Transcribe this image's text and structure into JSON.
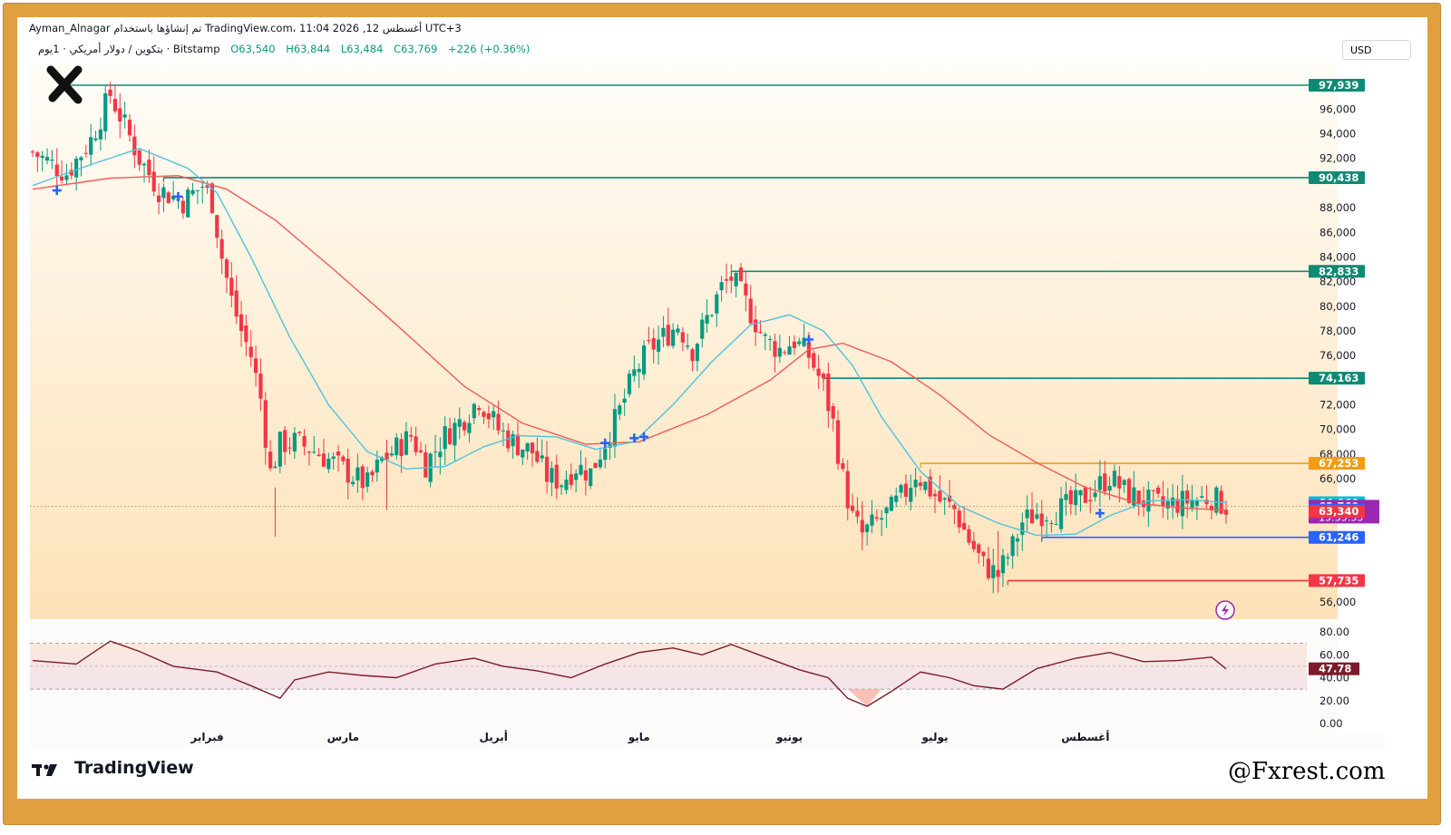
{
  "header": {
    "line1": "Ayman_Alnagar تم إنشاؤها باستخدام TradingView.com، 11:04 2026 ,12 أغسطس UTC+3",
    "symbol": "بتكوين / دولار أمريكي · 1يوم · Bitstamp",
    "open": "O63,540",
    "high": "H63,844",
    "low": "L63,484",
    "close": "C63,769",
    "change": "+226 (+0.36%)"
  },
  "currency": "USD",
  "brand": "TradingView",
  "handle": "@Fxrest.com",
  "colors": {
    "frame": "#e19f3f",
    "bull": "#089981",
    "bear": "#f23645",
    "ma_fast": "#4fc3dc",
    "ma_slow": "#f05a5a",
    "level": "#0e8a74",
    "rsi": "#7b1a2a"
  },
  "chart_data": {
    "type": "candlestick",
    "timeframe": "1D",
    "y_range": [
      55000,
      99000
    ],
    "y_ticks": [
      "56,000",
      "66,000",
      "68,000",
      "70,000",
      "72,000",
      "76,000",
      "78,000",
      "80,000",
      "82,000",
      "84,000",
      "86,000",
      "88,000",
      "92,000",
      "94,000",
      "96,000"
    ],
    "x_labels": [
      {
        "label": "فبراير",
        "date": "2026-02-01"
      },
      {
        "label": "مارس",
        "date": "2026-03-01"
      },
      {
        "label": "أبريل",
        "date": "2026-04-01"
      },
      {
        "label": "مايو",
        "date": "2026-05-01"
      },
      {
        "label": "يونيو",
        "date": "2026-06-01"
      },
      {
        "label": "يوليو",
        "date": "2026-07-01"
      },
      {
        "label": "أغسطس",
        "date": "2026-08-01"
      }
    ],
    "horizontal_levels": [
      {
        "value": 97939,
        "label": "97,939",
        "color": "#0e8a74"
      },
      {
        "value": 90438,
        "label": "90,438",
        "color": "#0e8a74"
      },
      {
        "value": 82833,
        "label": "82,833",
        "color": "#0e8a74"
      },
      {
        "value": 74163,
        "label": "74,163",
        "color": "#0e8a74"
      },
      {
        "value": 67253,
        "label": "67,253",
        "color": "#f39c12"
      },
      {
        "value": 61246,
        "label": "61,246",
        "color": "#2962ff"
      },
      {
        "value": 57735,
        "label": "57,735",
        "color": "#f23645"
      }
    ],
    "price_badges": [
      {
        "value": 64060,
        "label": "64,060",
        "color": "#00bcd4"
      },
      {
        "value": 63769,
        "label": "63,769",
        "sub": "15:55:55",
        "color": "#9c27b0"
      },
      {
        "value": 63466,
        "label": "63,466",
        "color": "#2962ff"
      },
      {
        "value": 63340,
        "label": "63,340",
        "color": "#f23645"
      }
    ],
    "close_path": [
      [
        "2025-12-27",
        92500
      ],
      [
        "2026-01-03",
        90800
      ],
      [
        "2026-01-08",
        93500
      ],
      [
        "2026-01-12",
        97200
      ],
      [
        "2026-01-14",
        95500
      ],
      [
        "2026-01-18",
        92000
      ],
      [
        "2026-01-22",
        89500
      ],
      [
        "2026-01-27",
        88500
      ],
      [
        "2026-01-31",
        89800
      ],
      [
        "2026-02-02",
        88500
      ],
      [
        "2026-02-04",
        84000
      ],
      [
        "2026-02-06",
        80500
      ],
      [
        "2026-02-08",
        78000
      ],
      [
        "2026-02-10",
        76000
      ],
      [
        "2026-02-12",
        72500
      ],
      [
        "2026-02-14",
        66500
      ],
      [
        "2026-02-16",
        68800
      ],
      [
        "2026-02-19",
        69000
      ],
      [
        "2026-02-23",
        68300
      ],
      [
        "2026-02-27",
        67300
      ],
      [
        "2026-03-02",
        66500
      ],
      [
        "2026-03-06",
        65500
      ],
      [
        "2026-03-09",
        67500
      ],
      [
        "2026-03-12",
        68500
      ],
      [
        "2026-03-15",
        69500
      ],
      [
        "2026-03-18",
        67200
      ],
      [
        "2026-03-22",
        69500
      ],
      [
        "2026-03-26",
        71000
      ],
      [
        "2026-03-29",
        72500
      ],
      [
        "2026-04-02",
        70000
      ],
      [
        "2026-04-05",
        69000
      ],
      [
        "2026-04-09",
        68200
      ],
      [
        "2026-04-12",
        66200
      ],
      [
        "2026-04-15",
        65800
      ],
      [
        "2026-04-18",
        67000
      ],
      [
        "2026-04-21",
        66500
      ],
      [
        "2026-04-24",
        69000
      ],
      [
        "2026-04-27",
        71500
      ],
      [
        "2026-04-30",
        74500
      ],
      [
        "2026-05-03",
        76500
      ],
      [
        "2026-05-06",
        77500
      ],
      [
        "2026-05-09",
        78500
      ],
      [
        "2026-05-12",
        76500
      ],
      [
        "2026-05-15",
        79000
      ],
      [
        "2026-05-18",
        81500
      ],
      [
        "2026-05-20",
        82300
      ],
      [
        "2026-05-22",
        81000
      ],
      [
        "2026-05-24",
        79500
      ],
      [
        "2026-05-27",
        77200
      ],
      [
        "2026-05-30",
        76500
      ],
      [
        "2026-06-02",
        77200
      ],
      [
        "2026-06-05",
        76000
      ],
      [
        "2026-06-08",
        73500
      ],
      [
        "2026-06-10",
        70500
      ],
      [
        "2026-06-12",
        66000
      ],
      [
        "2026-06-14",
        62800
      ],
      [
        "2026-06-16",
        61500
      ],
      [
        "2026-06-19",
        62500
      ],
      [
        "2026-06-22",
        63500
      ],
      [
        "2026-06-25",
        65000
      ],
      [
        "2026-06-27",
        66500
      ],
      [
        "2026-06-29",
        65500
      ],
      [
        "2026-07-02",
        64200
      ],
      [
        "2026-07-05",
        63500
      ],
      [
        "2026-07-08",
        61000
      ],
      [
        "2026-07-11",
        59000
      ],
      [
        "2026-07-14",
        58200
      ],
      [
        "2026-07-17",
        60500
      ],
      [
        "2026-07-19",
        62500
      ],
      [
        "2026-07-22",
        63200
      ],
      [
        "2026-07-26",
        63400
      ],
      [
        "2026-07-30",
        64000
      ],
      [
        "2026-08-03",
        65200
      ],
      [
        "2026-08-06",
        66200
      ],
      [
        "2026-08-09",
        65000
      ],
      [
        "2026-08-13",
        64200
      ],
      [
        "2026-08-17",
        63800
      ],
      [
        "2026-08-22",
        64200
      ],
      [
        "2026-08-27",
        64500
      ],
      [
        "2026-08-30",
        63769
      ]
    ],
    "ma_fast_path": [
      [
        "2025-12-27",
        89800
      ],
      [
        "2026-01-08",
        91500
      ],
      [
        "2026-01-18",
        92800
      ],
      [
        "2026-01-28",
        91200
      ],
      [
        "2026-02-03",
        89200
      ],
      [
        "2026-02-10",
        84000
      ],
      [
        "2026-02-18",
        77500
      ],
      [
        "2026-02-26",
        72000
      ],
      [
        "2026-03-06",
        68200
      ],
      [
        "2026-03-14",
        66800
      ],
      [
        "2026-03-22",
        67000
      ],
      [
        "2026-03-30",
        68600
      ],
      [
        "2026-04-06",
        69500
      ],
      [
        "2026-04-14",
        69400
      ],
      [
        "2026-04-22",
        68400
      ],
      [
        "2026-04-30",
        69000
      ],
      [
        "2026-05-08",
        72000
      ],
      [
        "2026-05-16",
        75500
      ],
      [
        "2026-05-24",
        78500
      ],
      [
        "2026-06-01",
        79300
      ],
      [
        "2026-06-08",
        78000
      ],
      [
        "2026-06-14",
        75200
      ],
      [
        "2026-06-20",
        71000
      ],
      [
        "2026-06-28",
        66600
      ],
      [
        "2026-07-06",
        63800
      ],
      [
        "2026-07-14",
        62400
      ],
      [
        "2026-07-22",
        61400
      ],
      [
        "2026-07-30",
        61500
      ],
      [
        "2026-08-06",
        63000
      ],
      [
        "2026-08-14",
        64200
      ],
      [
        "2026-08-22",
        64300
      ],
      [
        "2026-08-30",
        64060
      ]
    ],
    "ma_slow_path": [
      [
        "2025-12-27",
        89500
      ],
      [
        "2026-01-12",
        90400
      ],
      [
        "2026-01-26",
        90600
      ],
      [
        "2026-02-05",
        89500
      ],
      [
        "2026-02-15",
        87000
      ],
      [
        "2026-02-27",
        83000
      ],
      [
        "2026-03-12",
        78500
      ],
      [
        "2026-03-26",
        73500
      ],
      [
        "2026-04-07",
        70500
      ],
      [
        "2026-04-20",
        68800
      ],
      [
        "2026-05-01",
        69000
      ],
      [
        "2026-05-15",
        71200
      ],
      [
        "2026-05-28",
        74000
      ],
      [
        "2026-06-05",
        76500
      ],
      [
        "2026-06-12",
        77000
      ],
      [
        "2026-06-22",
        75500
      ],
      [
        "2026-07-02",
        72800
      ],
      [
        "2026-07-12",
        69600
      ],
      [
        "2026-07-22",
        67300
      ],
      [
        "2026-08-01",
        65300
      ],
      [
        "2026-08-12",
        64000
      ],
      [
        "2026-08-22",
        63600
      ],
      [
        "2026-08-30",
        63466
      ]
    ],
    "rsi": {
      "y_range": [
        0,
        100
      ],
      "y_ticks": [
        "80.00",
        "60.00",
        "40.00",
        "20.00",
        "0.00"
      ],
      "bands": [
        70,
        30
      ],
      "value": 47.78,
      "value_label": "47.78",
      "path": [
        [
          "2025-12-27",
          55
        ],
        [
          "2026-01-05",
          52
        ],
        [
          "2026-01-12",
          72
        ],
        [
          "2026-01-18",
          63
        ],
        [
          "2026-01-25",
          50
        ],
        [
          "2026-02-03",
          45
        ],
        [
          "2026-02-10",
          33
        ],
        [
          "2026-02-16",
          22
        ],
        [
          "2026-02-19",
          38
        ],
        [
          "2026-02-26",
          45
        ],
        [
          "2026-03-05",
          42
        ],
        [
          "2026-03-12",
          40
        ],
        [
          "2026-03-20",
          52
        ],
        [
          "2026-03-28",
          57
        ],
        [
          "2026-04-03",
          50
        ],
        [
          "2026-04-10",
          46
        ],
        [
          "2026-04-17",
          40
        ],
        [
          "2026-04-24",
          52
        ],
        [
          "2026-05-01",
          62
        ],
        [
          "2026-05-08",
          66
        ],
        [
          "2026-05-14",
          60
        ],
        [
          "2026-05-20",
          69
        ],
        [
          "2026-05-27",
          58
        ],
        [
          "2026-06-03",
          47
        ],
        [
          "2026-06-09",
          40
        ],
        [
          "2026-06-13",
          22
        ],
        [
          "2026-06-17",
          15
        ],
        [
          "2026-06-22",
          28
        ],
        [
          "2026-06-28",
          45
        ],
        [
          "2026-07-04",
          40
        ],
        [
          "2026-07-09",
          33
        ],
        [
          "2026-07-15",
          30
        ],
        [
          "2026-07-22",
          48
        ],
        [
          "2026-07-30",
          57
        ],
        [
          "2026-08-06",
          62
        ],
        [
          "2026-08-13",
          54
        ],
        [
          "2026-08-20",
          55
        ],
        [
          "2026-08-27",
          58
        ],
        [
          "2026-08-30",
          47.78
        ]
      ]
    },
    "markers": [
      {
        "date": "2026-01-01",
        "value": 89400
      },
      {
        "date": "2026-01-26",
        "value": 88900
      },
      {
        "date": "2026-04-24",
        "value": 68900
      },
      {
        "date": "2026-04-30",
        "value": 69300
      },
      {
        "date": "2026-05-02",
        "value": 69400
      },
      {
        "date": "2026-06-05",
        "value": 77300
      },
      {
        "date": "2026-08-04",
        "value": 63200
      }
    ]
  }
}
